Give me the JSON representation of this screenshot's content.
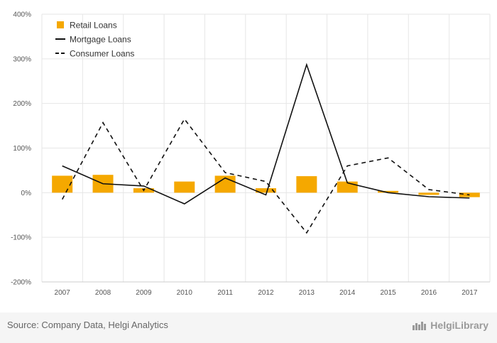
{
  "chart_data": {
    "type": "bar",
    "categories": [
      "2007",
      "2008",
      "2009",
      "2010",
      "2011",
      "2012",
      "2013",
      "2014",
      "2015",
      "2016",
      "2017"
    ],
    "yticks": [
      400,
      300,
      200,
      100,
      0,
      -100,
      -200
    ],
    "ytick_labels": [
      "400%",
      "300%",
      "200%",
      "100%",
      "0%",
      "-100%",
      "-200%"
    ],
    "ylim": [
      -200,
      400
    ],
    "grid": true,
    "legend_position": "top-left",
    "series": [
      {
        "name": "Retail Loans",
        "kind": "bar",
        "color": "#f5a800",
        "values": [
          38,
          40,
          10,
          25,
          38,
          10,
          37,
          25,
          4,
          -5,
          -10
        ]
      },
      {
        "name": "Mortgage Loans",
        "kind": "line",
        "dash": "solid",
        "color": "#111111",
        "values": [
          60,
          20,
          15,
          -25,
          33,
          -5,
          287,
          22,
          0,
          -9,
          -12
        ]
      },
      {
        "name": "Consumer Loans",
        "kind": "line",
        "dash": "dashed",
        "color": "#111111",
        "values": [
          -15,
          157,
          5,
          165,
          45,
          25,
          -90,
          60,
          78,
          7,
          -5
        ]
      }
    ]
  },
  "footer": {
    "source": "Source: Company Data, Helgi Analytics",
    "brand_logo_icon": "helgi-library-logo-icon",
    "brand": "HelgiLibrary"
  }
}
